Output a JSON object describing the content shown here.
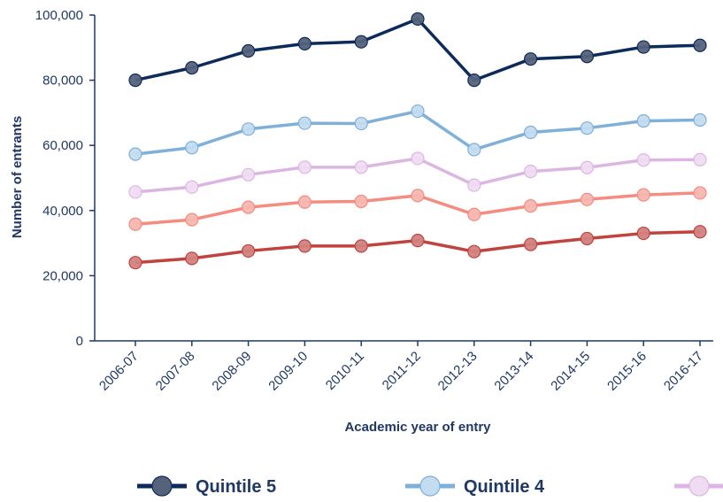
{
  "chart_data": {
    "type": "line",
    "title": "",
    "xlabel": "Academic year of entry",
    "ylabel": "Number of entrants",
    "ylim": [
      0,
      100000
    ],
    "yticks": [
      "0",
      "20,000",
      "40,000",
      "60,000",
      "80,000",
      "100,000"
    ],
    "grid": false,
    "legend_position": "bottom",
    "categories": [
      "2006-07",
      "2007-08",
      "2008-09",
      "2009-10",
      "2010-11",
      "2011-12",
      "2012-13",
      "2013-14",
      "2014-15",
      "2015-16",
      "2016-17"
    ],
    "series": [
      {
        "name": "Quintile 5",
        "color": "#0d2b5a",
        "marker_color": "#55627a",
        "in_legend": true,
        "values": [
          80000,
          83800,
          89000,
          91200,
          91800,
          98800,
          80000,
          86500,
          87300,
          90200,
          90700
        ]
      },
      {
        "name": "Quintile 4",
        "color": "#7fb0d9",
        "marker_color": "#c3dcef",
        "in_legend": true,
        "values": [
          57300,
          59300,
          65000,
          66800,
          66700,
          70500,
          58700,
          64000,
          65300,
          67500,
          67800
        ]
      },
      {
        "color": "#dcb6e3",
        "marker_color": "#efdcf1",
        "in_legend": true,
        "values": [
          45700,
          47200,
          51000,
          53300,
          53300,
          56000,
          47800,
          52000,
          53200,
          55500,
          55600
        ]
      },
      {
        "color": "#f58c80",
        "marker_color": "#f6b7b0",
        "in_legend": false,
        "values": [
          35800,
          37200,
          41000,
          42600,
          42800,
          44600,
          38800,
          41400,
          43400,
          44800,
          45400
        ]
      },
      {
        "color": "#c0433f",
        "marker_color": "#d2827f",
        "in_legend": false,
        "values": [
          24000,
          25300,
          27600,
          29100,
          29100,
          30800,
          27400,
          29600,
          31400,
          33000,
          33500
        ]
      }
    ]
  }
}
